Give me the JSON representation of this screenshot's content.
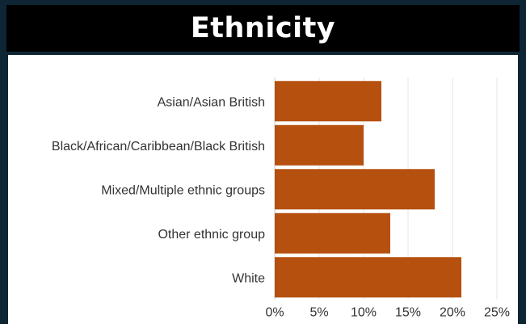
{
  "chart_data": {
    "type": "bar",
    "orientation": "horizontal",
    "title": "Ethnicity",
    "categories": [
      "Asian/Asian British",
      "Black/African/Caribbean/Black British",
      "Mixed/Multiple ethnic groups",
      "Other ethnic group",
      "White"
    ],
    "values": [
      12.0,
      10.0,
      18.0,
      13.0,
      21.0
    ],
    "xlim": [
      0,
      25
    ],
    "xticks": [
      "0%",
      "5%",
      "10%",
      "15%",
      "20%",
      "25%"
    ],
    "grid": true,
    "bar_color": "#b5500f",
    "grid_color": "#e6e6e6"
  },
  "colors": {
    "frame": "#0e2633",
    "header_bg": "#000000",
    "title_text": "#ffffff",
    "label_text": "#333333"
  }
}
